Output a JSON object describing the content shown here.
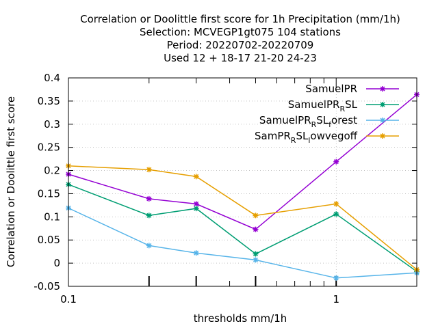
{
  "chart_data": {
    "type": "line",
    "title_lines": [
      "Correlation or Doolittle first score  for 1h Precipitation (mm/1h)",
      "Selection: MCVEGP1gt075    104 stations",
      "Period: 20220702-20220709",
      "Used  12 + 18-17 21-20 24-23"
    ],
    "xlabel": "thresholds mm/1h",
    "ylabel": "Correlation or Doolittle first score",
    "x_scale": "log",
    "xlim": [
      0.1,
      2
    ],
    "ylim": [
      -0.05,
      0.4
    ],
    "x_tick_labels": [
      "0.1",
      "1"
    ],
    "y_ticks": [
      -0.05,
      0,
      0.05,
      0.1,
      0.15,
      0.2,
      0.25,
      0.3,
      0.35,
      0.4
    ],
    "y_tick_labels": [
      "-0.05",
      "0",
      "0.05",
      "0.1",
      "0.15",
      "0.2",
      "0.25",
      "0.3",
      "0.35",
      "0.4"
    ],
    "grid": true,
    "legend_position": "top-right",
    "x": [
      0.1,
      0.2,
      0.3,
      0.5,
      1,
      2
    ],
    "series": [
      {
        "name": "SamuelPR",
        "name_parts": [
          [
            "SamuelPR",
            ""
          ]
        ],
        "color": "#9400d3",
        "values": [
          0.192,
          0.139,
          0.128,
          0.073,
          0.219,
          0.364
        ]
      },
      {
        "name": "SamuelPR_R SL",
        "name_parts": [
          [
            "SamuelPR",
            ""
          ],
          [
            "R",
            "sub"
          ],
          [
            "SL",
            ""
          ]
        ],
        "color": "#009e73",
        "values": [
          0.17,
          0.103,
          0.118,
          0.02,
          0.106,
          -0.018
        ]
      },
      {
        "name": "SamuelPR_R SL_f orest",
        "name_parts": [
          [
            "SamuelPR",
            ""
          ],
          [
            "R",
            "sub"
          ],
          [
            "SL",
            ""
          ],
          [
            "f",
            "sub"
          ],
          [
            "orest",
            ""
          ]
        ],
        "color": "#56b4e9",
        "values": [
          0.119,
          0.038,
          0.022,
          0.007,
          -0.032,
          -0.021
        ]
      },
      {
        "name": "SamPR_R SL_l owvegoff",
        "name_parts": [
          [
            "SamPR",
            ""
          ],
          [
            "R",
            "sub"
          ],
          [
            "SL",
            ""
          ],
          [
            "l",
            "sub"
          ],
          [
            "owvegoff",
            ""
          ]
        ],
        "color": "#e69f00",
        "values": [
          0.21,
          0.202,
          0.187,
          0.103,
          0.128,
          -0.014
        ]
      }
    ]
  }
}
